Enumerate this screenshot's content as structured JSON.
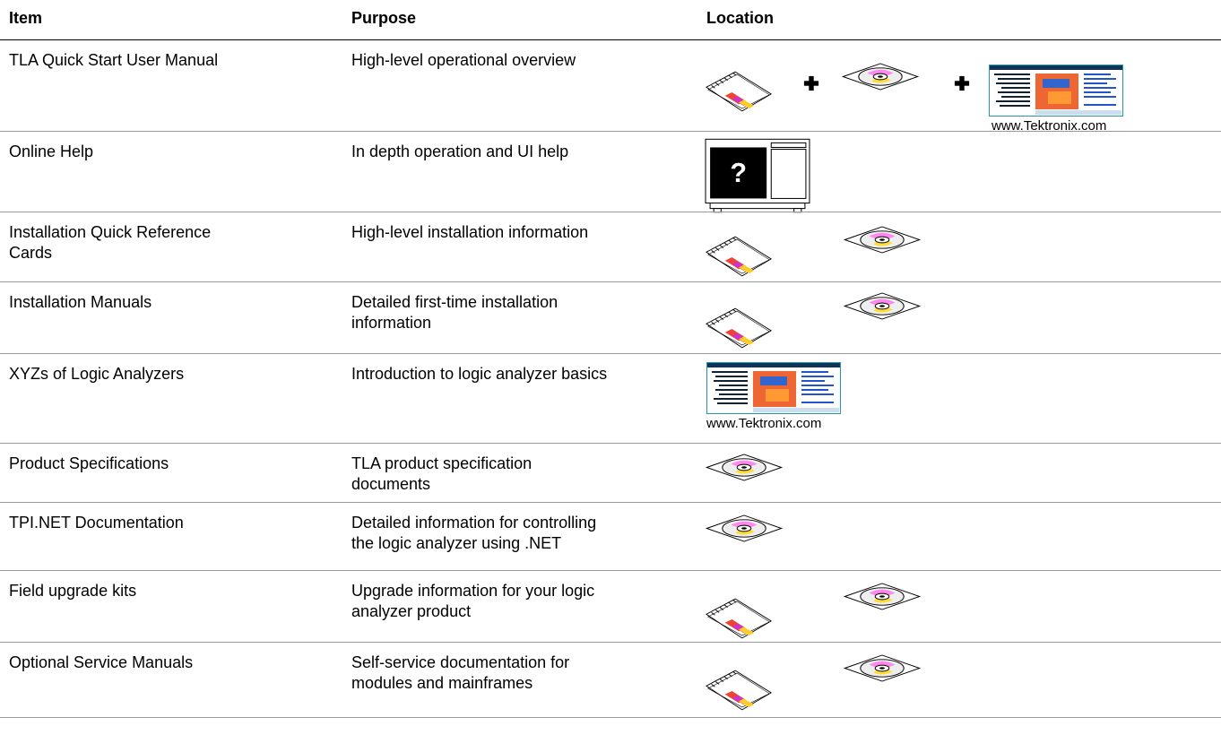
{
  "table": {
    "headers": [
      "Item",
      "Purpose",
      "Location"
    ],
    "rows": [
      {
        "item": "TLA Quick Start User Manual",
        "purpose": "High-level operational overview",
        "location_caption": "www.Tektronix.com"
      },
      {
        "item": "Online Help",
        "purpose": "In depth operation and UI help"
      },
      {
        "item": "Installation Quick Reference\nCards",
        "purpose": "High-level installation information"
      },
      {
        "item": "Installation Manuals",
        "purpose": "Detailed first-time installation\ninformation"
      },
      {
        "item": "XYZs of Logic Analyzers",
        "purpose": "Introduction to logic analyzer basics",
        "location_caption": "www.Tektronix.com"
      },
      {
        "item": "Product Specifications",
        "purpose": "TLA product specification\ndocuments"
      },
      {
        "item": "TPI.NET Documentation",
        "purpose": "Detailed information for controlling\nthe logic analyzer using .NET"
      },
      {
        "item": "Field upgrade kits",
        "purpose": "Upgrade information for your logic\nanalyzer product"
      },
      {
        "item": "Optional Service Manuals",
        "purpose": "Self-service documentation for\nmodules and mainframes"
      }
    ]
  }
}
